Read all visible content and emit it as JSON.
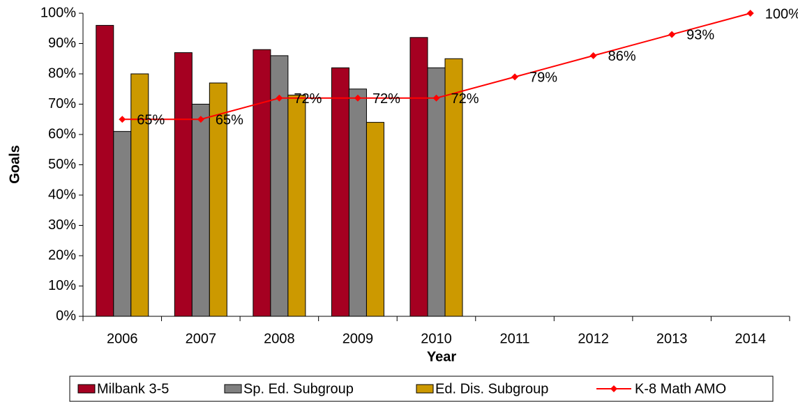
{
  "chart_data": {
    "type": "bar",
    "x_label": "Year",
    "y_label": "Goals",
    "categories": [
      "2006",
      "2007",
      "2008",
      "2009",
      "2010",
      "2011",
      "2012",
      "2013",
      "2014"
    ],
    "series": [
      {
        "name": "Milbank 3-5",
        "color": "#a50021",
        "values": [
          96,
          87,
          88,
          82,
          92,
          null,
          null,
          null,
          null
        ]
      },
      {
        "name": "Sp. Ed. Subgroup",
        "color": "#808080",
        "values": [
          61,
          70,
          86,
          75,
          82,
          null,
          null,
          null,
          null
        ]
      },
      {
        "name": "Ed. Dis. Subgroup",
        "color": "#cc9900",
        "values": [
          80,
          77,
          73,
          64,
          85,
          null,
          null,
          null,
          null
        ]
      },
      {
        "name": "K-8 Math AMO",
        "type": "line",
        "color": "#ff0000",
        "values": [
          65,
          65,
          72,
          72,
          72,
          79,
          86,
          93,
          100
        ],
        "value_labels": [
          "65%",
          "65%",
          "72%",
          "72%",
          "72%",
          "79%",
          "86%",
          "93%",
          "100%"
        ]
      }
    ],
    "ylim": [
      0,
      100
    ],
    "yticks": [
      {
        "value": 0,
        "label": "0%"
      },
      {
        "value": 10,
        "label": "10%"
      },
      {
        "value": 20,
        "label": "20%"
      },
      {
        "value": 30,
        "label": "30%"
      },
      {
        "value": 40,
        "label": "40%"
      },
      {
        "value": 50,
        "label": "50%"
      },
      {
        "value": 60,
        "label": "60%"
      },
      {
        "value": 70,
        "label": "70%"
      },
      {
        "value": 80,
        "label": "80%"
      },
      {
        "value": 90,
        "label": "90%"
      },
      {
        "value": 100,
        "label": "100%"
      }
    ],
    "grid": false,
    "legend": "bottom"
  }
}
